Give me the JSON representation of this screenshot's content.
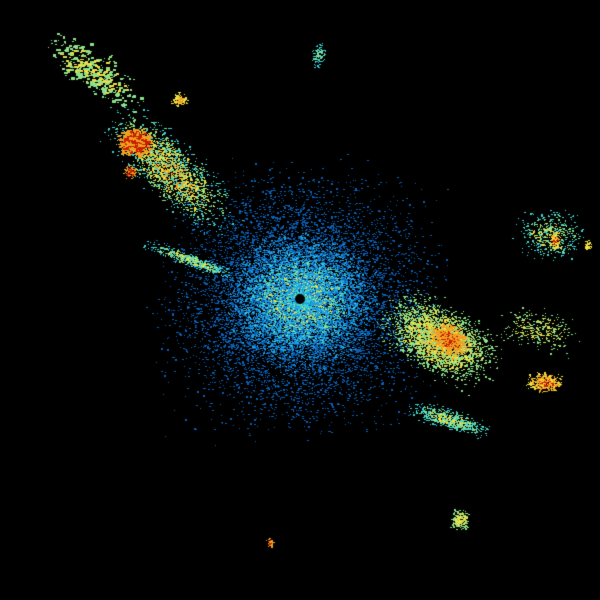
{
  "image": {
    "kind": "weather radar reflectivity",
    "background": "#000000",
    "palette": {
      "weak": "#0a5fb4",
      "light": "#1e9fe0",
      "cyan": "#3cd2d2",
      "green": "#8ee08a",
      "yellow": "#f0e040",
      "orange": "#f0a020",
      "red": "#c81e00"
    },
    "radar_site_marker": "#000000"
  }
}
